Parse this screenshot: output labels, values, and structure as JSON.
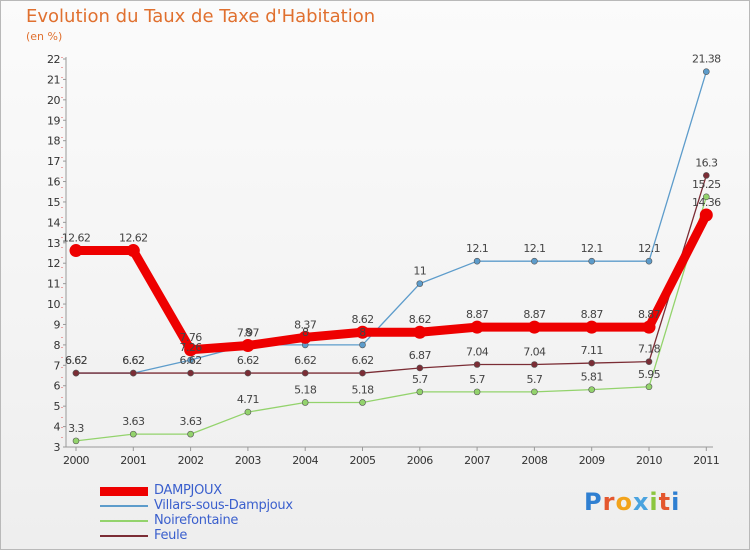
{
  "title": "Evolution du Taux de Taxe d'Habitation",
  "subtitle": "(en %)",
  "logo": {
    "text": "Proxiti",
    "letter_colors": [
      "#2f7fd1",
      "#e4572e",
      "#f2a31b",
      "#4aa3df",
      "#8cc63f",
      "#e4572e",
      "#2f7fd1"
    ]
  },
  "chart_data": {
    "type": "line",
    "title": "Evolution du Taux de Taxe d'Habitation",
    "ylabel": "(en %)",
    "xlabel": "",
    "x": [
      "2000",
      "2001",
      "2002",
      "2003",
      "2004",
      "2005",
      "2006",
      "2007",
      "2008",
      "2009",
      "2010",
      "2011"
    ],
    "ylim": [
      3,
      22
    ],
    "yticks": [
      "3",
      "4",
      "5",
      "6",
      "7",
      "8",
      "9",
      "10",
      "11",
      "12",
      "13",
      "14",
      "15",
      "16",
      "17",
      "18",
      "19",
      "20",
      "21",
      "22"
    ],
    "grid": false,
    "legend": "bottom-left",
    "series": [
      {
        "name": "Villars-sous-Dampjoux",
        "color": "#5d9ccb",
        "values": [
          6.62,
          6.62,
          7.26,
          8,
          8,
          8,
          11,
          12.1,
          12.1,
          12.1,
          12.1,
          21.38
        ],
        "labels": [
          "6.62",
          "6.62",
          "7.26",
          "8",
          "8",
          "8",
          "11",
          "12.1",
          "12.1",
          "12.1",
          "12.1",
          "21.38"
        ]
      },
      {
        "name": "Noirefontaine",
        "color": "#93d36c",
        "values": [
          3.3,
          3.63,
          3.63,
          4.71,
          5.18,
          5.18,
          5.7,
          5.7,
          5.7,
          5.81,
          5.95,
          15.25
        ],
        "labels": [
          "3.3",
          "3.63",
          "3.63",
          "4.71",
          "5.18",
          "5.18",
          "5.7",
          "5.7",
          "5.7",
          "5.81",
          "5.95",
          "15.25"
        ]
      },
      {
        "name": "Feule",
        "color": "#7b2d35",
        "values": [
          6.62,
          6.62,
          6.62,
          6.62,
          6.62,
          6.62,
          6.87,
          7.04,
          7.04,
          7.11,
          7.18,
          16.3
        ],
        "labels": [
          "6.62",
          "6.62",
          "6.62",
          "6.62",
          "6.62",
          "6.62",
          "6.87",
          "7.04",
          "7.04",
          "7.11",
          "7.18",
          "16.3"
        ]
      },
      {
        "name": "DAMPJOUX",
        "color": "#ee0000",
        "values": [
          12.62,
          12.62,
          7.76,
          7.97,
          8.37,
          8.62,
          8.62,
          8.87,
          8.87,
          8.87,
          8.87,
          14.36
        ],
        "labels": [
          "12.62",
          "12.62",
          "7.76",
          "7.97",
          "8.37",
          "8.62",
          "8.62",
          "8.87",
          "8.87",
          "8.87",
          "8.87",
          "14.36"
        ]
      }
    ],
    "legend_order": [
      "DAMPJOUX",
      "Villars-sous-Dampjoux",
      "Noirefontaine",
      "Feule"
    ]
  }
}
